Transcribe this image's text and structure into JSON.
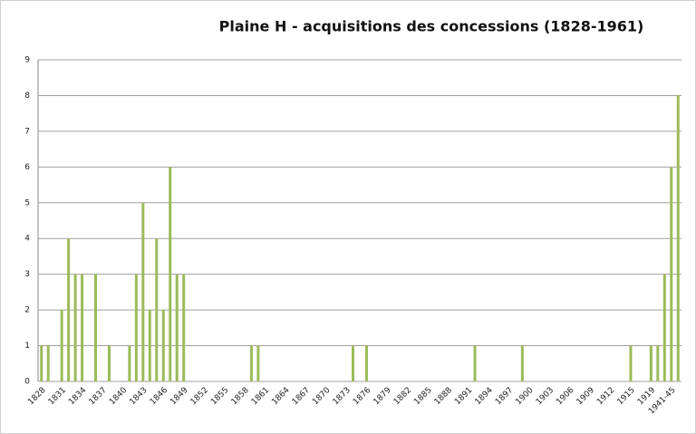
{
  "chart_data": {
    "type": "bar",
    "title": "Plaine H - acquisitions des concessions (1828-1961)",
    "categories": [
      "1828",
      null,
      null,
      "1831",
      null,
      null,
      "1834",
      null,
      null,
      "1837",
      null,
      null,
      "1840",
      null,
      null,
      "1843",
      null,
      null,
      "1846",
      null,
      null,
      "1849",
      null,
      null,
      "1852",
      null,
      null,
      "1855",
      null,
      null,
      "1858",
      null,
      null,
      "1861",
      null,
      null,
      "1864",
      null,
      null,
      "1867",
      null,
      null,
      "1870",
      null,
      null,
      "1873",
      null,
      null,
      "1876",
      null,
      null,
      "1879",
      null,
      null,
      "1882",
      null,
      null,
      "1885",
      null,
      null,
      "1888",
      null,
      null,
      "1891",
      null,
      null,
      "1894",
      null,
      null,
      "1897",
      null,
      null,
      "1900",
      null,
      null,
      "1903",
      null,
      null,
      "1906",
      null,
      null,
      "1909",
      null,
      null,
      "1912",
      null,
      null,
      "1915",
      null,
      null,
      "1919",
      null,
      null,
      "1941-45",
      null
    ],
    "values": [
      1,
      1,
      0,
      2,
      4,
      3,
      3,
      0,
      3,
      0,
      1,
      0,
      0,
      1,
      3,
      5,
      2,
      4,
      2,
      6,
      3,
      3,
      0,
      0,
      0,
      0,
      0,
      0,
      0,
      0,
      0,
      1,
      1,
      0,
      0,
      0,
      0,
      0,
      0,
      0,
      0,
      0,
      0,
      0,
      0,
      0,
      1,
      0,
      1,
      0,
      0,
      0,
      0,
      0,
      0,
      0,
      0,
      0,
      0,
      0,
      0,
      0,
      0,
      0,
      1,
      0,
      0,
      0,
      0,
      0,
      0,
      1,
      0,
      0,
      0,
      0,
      0,
      0,
      0,
      0,
      0,
      0,
      0,
      0,
      0,
      0,
      0,
      1,
      0,
      0,
      1,
      1,
      3,
      6,
      8
    ],
    "color": "#9bbb59",
    "ylim": [
      0,
      9
    ],
    "yticks": [
      0,
      1,
      2,
      3,
      4,
      5,
      6,
      7,
      8,
      9
    ],
    "grid": true
  }
}
